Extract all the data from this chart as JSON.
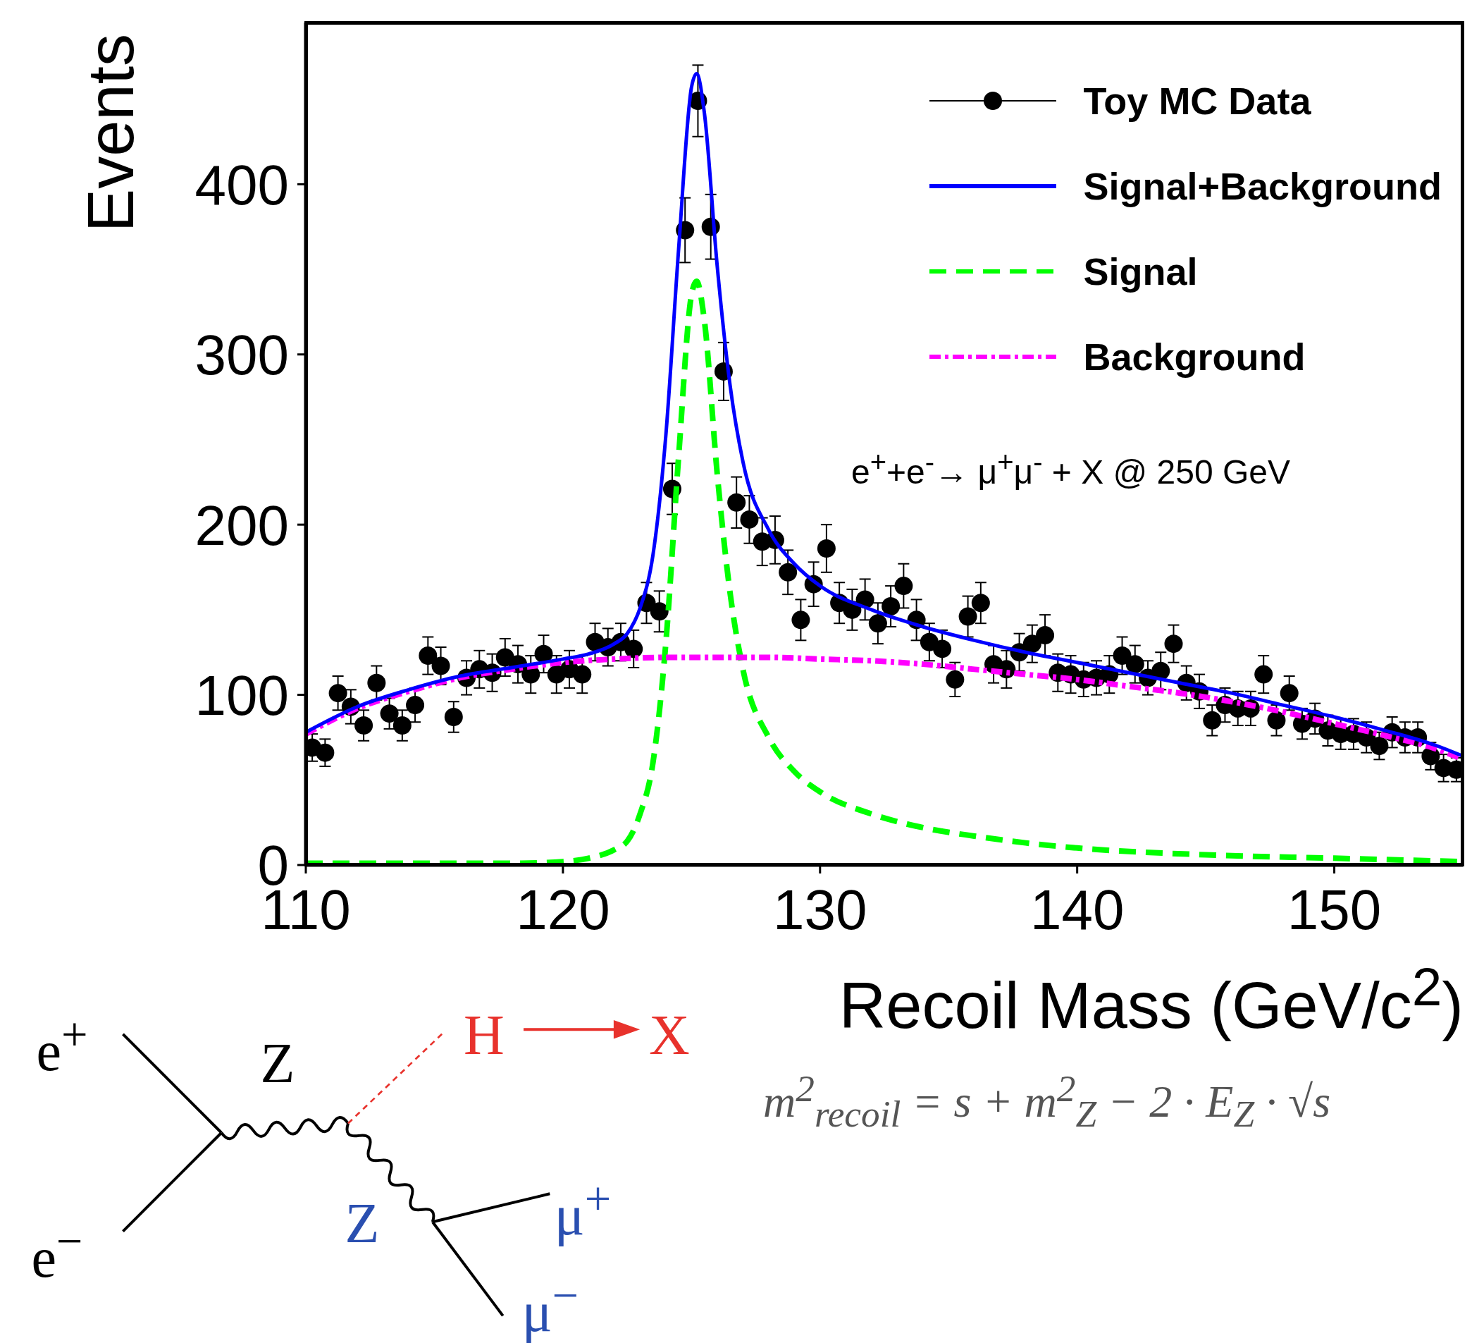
{
  "chart_data": {
    "type": "scatter",
    "xlabel": "Recoil Mass (GeV/c$^{2}$)",
    "ylabel": "Events",
    "xlim": [
      110,
      155
    ],
    "xticks": [
      110,
      120,
      130,
      140,
      150
    ],
    "ylim": [
      0,
      495
    ],
    "yticks": [
      0,
      100,
      200,
      300,
      400
    ],
    "grid": false,
    "legend": "top right",
    "marker": "circle",
    "x": [
      110.25,
      110.75,
      111.25,
      111.75,
      112.25,
      112.75,
      113.25,
      113.75,
      114.25,
      114.75,
      115.25,
      115.75,
      116.25,
      116.75,
      117.25,
      117.75,
      118.25,
      118.75,
      119.25,
      119.75,
      120.25,
      120.75,
      121.25,
      121.75,
      122.25,
      122.75,
      123.25,
      123.75,
      124.25,
      124.75,
      125.25,
      125.75,
      126.25,
      126.75,
      127.25,
      127.75,
      128.25,
      128.75,
      129.25,
      129.75,
      130.25,
      130.75,
      131.25,
      131.75,
      132.25,
      132.75,
      133.25,
      133.75,
      134.25,
      134.75,
      135.25,
      135.75,
      136.25,
      136.75,
      137.25,
      137.75,
      138.25,
      138.75,
      139.25,
      139.75,
      140.25,
      140.75,
      141.25,
      141.75,
      142.25,
      142.75,
      143.25,
      143.75,
      144.25,
      144.75,
      145.25,
      145.75,
      146.25,
      146.75,
      147.25,
      147.75,
      148.25,
      148.75,
      149.25,
      149.75,
      150.25,
      150.75,
      151.25,
      151.75,
      152.25,
      152.75,
      153.25,
      153.75,
      154.25,
      154.75
    ],
    "series": [
      {
        "name": "Toy MC Data",
        "color": "#000000",
        "values": [
          69,
          66,
          101,
          93,
          82,
          107,
          89,
          82,
          94,
          123,
          117,
          87,
          110,
          115,
          113,
          122,
          118,
          112,
          124,
          112,
          115,
          112,
          131,
          128,
          131,
          127,
          154,
          149,
          221,
          373,
          449,
          375,
          290,
          213,
          203,
          190,
          191,
          172,
          144,
          165,
          186,
          154,
          150,
          156,
          142,
          152,
          164,
          144,
          131,
          127,
          109,
          146,
          154,
          118,
          115,
          125,
          130,
          135,
          113,
          112,
          109,
          110,
          112,
          123,
          118,
          110,
          114,
          130,
          107,
          102,
          85,
          94,
          92,
          92,
          112,
          85,
          101,
          83,
          86,
          79,
          77,
          77,
          75,
          70,
          78,
          75,
          75,
          64,
          57,
          56
        ],
        "errors": [
          8,
          8,
          10,
          10,
          9,
          10,
          9,
          9,
          10,
          11,
          11,
          9,
          10,
          11,
          11,
          11,
          11,
          11,
          11,
          11,
          11,
          11,
          11,
          11,
          11,
          11,
          12,
          12,
          15,
          19,
          21,
          19,
          17,
          15,
          14,
          14,
          14,
          13,
          12,
          13,
          14,
          12,
          12,
          12,
          12,
          12,
          13,
          12,
          11,
          11,
          10,
          12,
          12,
          11,
          11,
          11,
          11,
          12,
          11,
          11,
          10,
          10,
          11,
          11,
          11,
          10,
          11,
          11,
          10,
          10,
          9,
          10,
          10,
          10,
          11,
          9,
          10,
          9,
          9,
          9,
          9,
          9,
          9,
          8,
          9,
          9,
          9,
          8,
          8,
          7
        ]
      },
      {
        "name": "Signal+Background",
        "type": "line",
        "color": "#0000ff",
        "line_style": "solid",
        "marker": "none",
        "x": [
          110,
          112,
          114,
          116,
          118,
          120,
          121,
          122,
          122.5,
          123,
          123.5,
          124,
          124.5,
          125,
          125.2,
          125.5,
          126,
          126.5,
          127,
          128,
          129,
          130,
          132,
          134,
          136,
          138,
          140,
          142,
          144,
          146,
          148,
          150,
          152,
          154,
          155
        ],
        "values": [
          78,
          93,
          103,
          111,
          116,
          121,
          124,
          130,
          136,
          151,
          182,
          252,
          362,
          457,
          465,
          442,
          352,
          282,
          237,
          197,
          177,
          164,
          150,
          140,
          132,
          125,
          119,
          113,
          107,
          101,
          94,
          87,
          79,
          70,
          64
        ]
      },
      {
        "name": "Signal",
        "type": "line",
        "color": "#00ff00",
        "line_style": "dashed",
        "marker": "none",
        "x": [
          110,
          118,
          120,
          121,
          122,
          122.5,
          123,
          123.5,
          124,
          124.5,
          125,
          125.2,
          125.5,
          126,
          126.5,
          127,
          128,
          129,
          130,
          132,
          134,
          136,
          138,
          140,
          145,
          150,
          155
        ],
        "values": [
          1,
          1,
          2,
          4,
          9,
          14,
          30,
          60,
          130,
          240,
          335,
          343,
          320,
          230,
          160,
          115,
          75,
          55,
          43,
          30,
          22,
          17,
          13,
          10,
          6,
          4,
          2
        ]
      },
      {
        "name": "Background",
        "type": "line",
        "color": "#ff00ff",
        "line_style": "dotted",
        "marker": "none",
        "x": [
          110,
          112,
          114,
          116,
          118,
          120,
          122,
          124,
          126,
          128,
          130,
          132,
          134,
          136,
          138,
          140,
          142,
          144,
          146,
          148,
          150,
          152,
          154,
          155
        ],
        "values": [
          77,
          92,
          102,
          110,
          115,
          119,
          121,
          122,
          122,
          122,
          121,
          120,
          118,
          115,
          112,
          109,
          105,
          101,
          96,
          90,
          83,
          76,
          68,
          62
        ]
      }
    ],
    "annotations": [
      "e$^{+}$+e$^{-}$→ μ$^{+}$μ$^{-}$ + X @ 250 GeV",
      "m$^{2}$$_{recoil}$ = s + m$^{2}$$_{Z}$ − 2 · E$_{Z}$ · √s",
      "e$^{+}$",
      "e$^{−}$",
      "Z",
      "Z",
      "H",
      "X",
      "μ$^{+}$",
      "μ$^{−}$"
    ]
  }
}
